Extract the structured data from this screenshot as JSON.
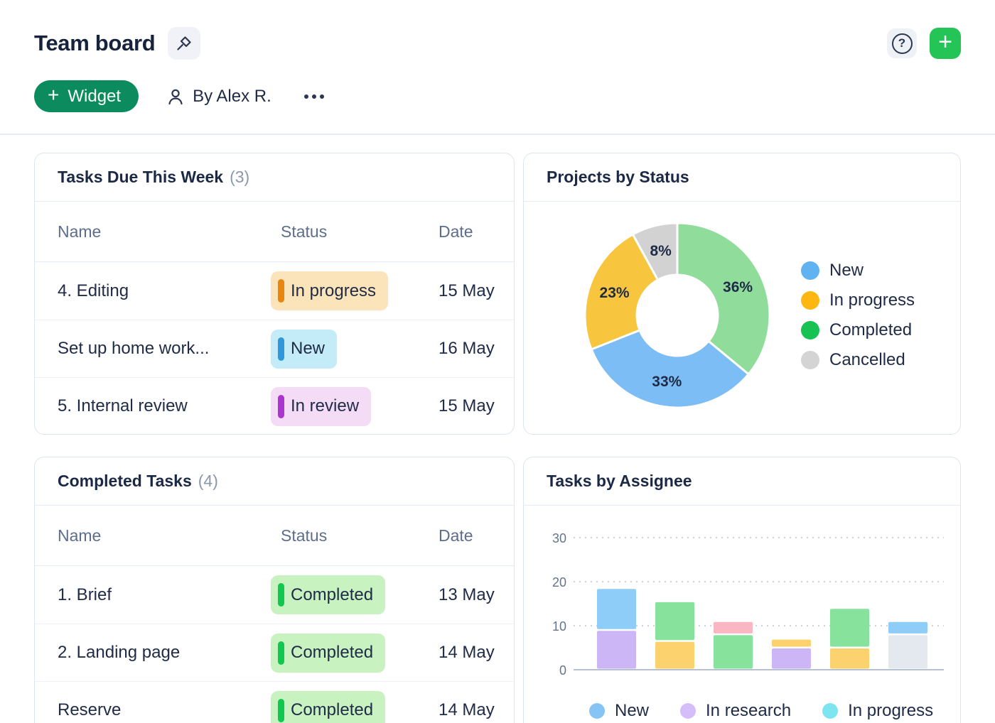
{
  "header": {
    "title": "Team board",
    "help_glyph": "?",
    "add_glyph": "+",
    "widget_button": {
      "glyph": "+",
      "label": "Widget"
    },
    "author_label": "By Alex R."
  },
  "cards": {
    "tasks_due": {
      "title": "Tasks Due This Week",
      "count": "(3)",
      "columns": [
        "Name",
        "Status",
        "Date"
      ],
      "rows": [
        {
          "name": "4. Editing",
          "status": "In progress",
          "status_key": "in_progress",
          "date": "15 May"
        },
        {
          "name": "Set up home work...",
          "status": "New",
          "status_key": "new",
          "date": "16 May"
        },
        {
          "name": "5. Internal review",
          "status": "In review",
          "status_key": "in_review",
          "date": "15 May"
        }
      ]
    },
    "projects_by_status": {
      "title": "Projects by Status"
    },
    "completed_tasks": {
      "title": "Completed Tasks",
      "count": "(4)",
      "columns": [
        "Name",
        "Status",
        "Date"
      ],
      "rows": [
        {
          "name": "1. Brief",
          "status": "Completed",
          "status_key": "completed",
          "date": "13 May"
        },
        {
          "name": "2. Landing page",
          "status": "Completed",
          "status_key": "completed",
          "date": "14 May"
        },
        {
          "name": "Reserve",
          "status": "Completed",
          "status_key": "completed",
          "date": "14 May"
        }
      ]
    },
    "tasks_by_assignee": {
      "title": "Tasks by Assignee"
    }
  },
  "status_styles": {
    "in_progress": {
      "bg": "#fce4ba",
      "bar": "#e8860f"
    },
    "new": {
      "bg": "#c4ebf8",
      "bar": "#2f98da"
    },
    "in_review": {
      "bg": "#f4dcf7",
      "bar": "#ab36cf"
    },
    "completed": {
      "bg": "#c8f2c0",
      "bar": "#10c84e"
    }
  },
  "colors": {
    "widget_button_bg": "#0c8b5f",
    "add_button_bg": "#25c457",
    "card_border": "#dde5f2",
    "divider": "#e6ecf5",
    "title_text": "#17233d",
    "muted_text": "#5d6e8b"
  },
  "chart_data": [
    {
      "type": "pie",
      "donut": true,
      "title": "Projects by Status",
      "unit": "%",
      "slices": [
        {
          "label": "Completed",
          "value": 36,
          "color": "#90dd9b"
        },
        {
          "label": "New",
          "value": 33,
          "color": "#7cbdf5"
        },
        {
          "label": "In progress",
          "value": 23,
          "color": "#f8c63e"
        },
        {
          "label": "Cancelled",
          "value": 8,
          "color": "#d2d2d2"
        }
      ],
      "slice_label_format": "value%",
      "legend_position": "right",
      "legend": [
        {
          "label": "New",
          "color": "#61b2f1"
        },
        {
          "label": "In progress",
          "color": "#fcb712"
        },
        {
          "label": "Completed",
          "color": "#16c252"
        },
        {
          "label": "Cancelled",
          "color": "#d4d4d4"
        }
      ]
    },
    {
      "type": "bar",
      "stacked": true,
      "title": "Tasks by Assignee",
      "ylim": [
        0,
        30
      ],
      "yticks": [
        0,
        10,
        20,
        30
      ],
      "grid": "dashed-horizontal",
      "bars": [
        {
          "segments": [
            {
              "value": 9,
              "color": "#ccb6f6"
            },
            {
              "value": 9.5,
              "color": "#8ecdf8"
            }
          ]
        },
        {
          "segments": [
            {
              "value": 6.5,
              "color": "#fbd26e"
            },
            {
              "value": 9,
              "color": "#87e29b"
            }
          ]
        },
        {
          "segments": [
            {
              "value": 8,
              "color": "#87e29b"
            },
            {
              "value": 3,
              "color": "#f9b6c3"
            }
          ]
        },
        {
          "segments": [
            {
              "value": 5,
              "color": "#ccb6f6"
            },
            {
              "value": 2,
              "color": "#fbd26e"
            }
          ]
        },
        {
          "segments": [
            {
              "value": 5,
              "color": "#fbd26e"
            },
            {
              "value": 9,
              "color": "#87e29b"
            }
          ]
        },
        {
          "segments": [
            {
              "value": 8,
              "color": "#e4e9ef"
            },
            {
              "value": 3,
              "color": "#8ecdf8"
            }
          ]
        }
      ],
      "legend_position": "bottom",
      "legend": [
        {
          "label": "New",
          "color": "#85c4f5"
        },
        {
          "label": "In research",
          "color": "#d4bdf8"
        },
        {
          "label": "In progress",
          "color": "#7de5f0"
        }
      ]
    }
  ]
}
